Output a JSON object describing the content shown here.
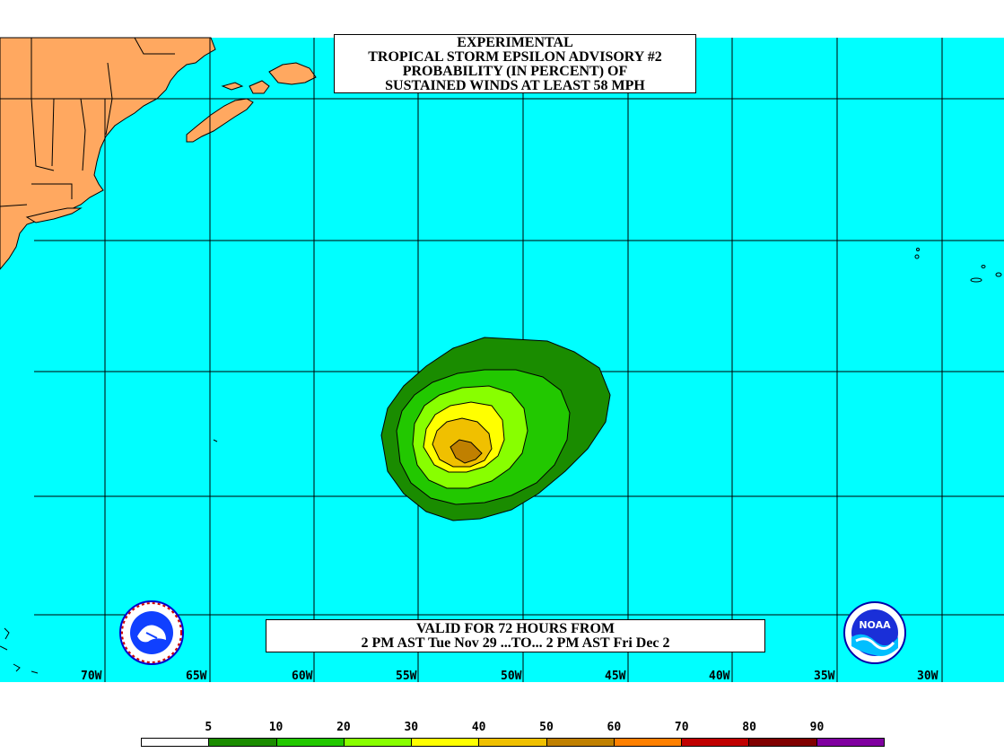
{
  "title": {
    "line1": "EXPERIMENTAL",
    "line2": "TROPICAL STORM EPSILON ADVISORY #2",
    "line3": "PROBABILITY (IN PERCENT) OF",
    "line4": "SUSTAINED WINDS AT LEAST 58 MPH"
  },
  "valid": {
    "line1": "VALID FOR 72 HOURS FROM",
    "line2": "2 PM AST Tue Nov 29 ...TO... 2 PM AST Fri Dec 2"
  },
  "longitude_labels": [
    "70W",
    "65W",
    "60W",
    "55W",
    "50W",
    "45W",
    "40W",
    "35W",
    "30W"
  ],
  "legend": {
    "labels": [
      "5",
      "10",
      "20",
      "30",
      "40",
      "50",
      "60",
      "70",
      "80",
      "90"
    ],
    "colors": [
      "#ffffff",
      "#1a8c00",
      "#22c800",
      "#88ff00",
      "#ffff00",
      "#f0c000",
      "#c08000",
      "#ff8000",
      "#c00000",
      "#800000",
      "#8000a0"
    ]
  },
  "colors": {
    "ocean": "#00ffff",
    "land": "#ffa860",
    "contour_10": "#1a8c00",
    "contour_20": "#22c800",
    "contour_30": "#88ff00",
    "contour_40": "#ffff00",
    "contour_50": "#f0c000",
    "contour_60": "#c08000"
  },
  "logos": {
    "left": "nws-logo",
    "right_text": "NOAA"
  }
}
